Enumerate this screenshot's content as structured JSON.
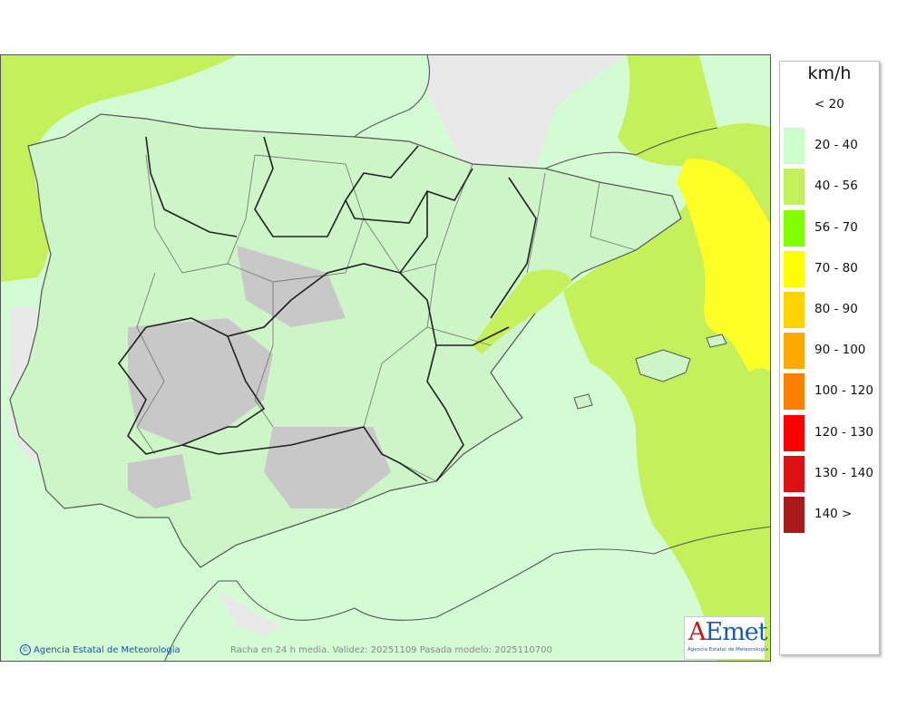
{
  "colors": {
    "sea_base": "#d4fcd4",
    "land_light": "#cdf5c8",
    "calm": "#e8e8e8",
    "band_40_56": "#c4f05a",
    "band_70_80": "#ffff26",
    "borders": "#222222",
    "regional_borders": "#7a7a7a"
  },
  "legend": {
    "unit": "km/h",
    "bands": [
      {
        "label": "< 20",
        "color": "#ffffff"
      },
      {
        "label": "20 - 40",
        "color": "#ccffcc"
      },
      {
        "label": "40 - 56",
        "color": "#c4f05a"
      },
      {
        "label": "56 - 70",
        "color": "#80ff00"
      },
      {
        "label": "70 - 80",
        "color": "#ffff00"
      },
      {
        "label": "80 - 90",
        "color": "#ffd400"
      },
      {
        "label": "90 - 100",
        "color": "#ffaa00"
      },
      {
        "label": "100 - 120",
        "color": "#ff8000"
      },
      {
        "label": "120 - 130",
        "color": "#ff0000"
      },
      {
        "label": "130 - 140",
        "color": "#dd1111"
      },
      {
        "label": "140 >",
        "color": "#aa1a1a"
      }
    ]
  },
  "footer": {
    "credit": "Agencia Estatal de Meteorología",
    "caption": "Racha en 24 h media. Validez: 20251109 Pasada modelo: 2025110700"
  },
  "logo": {
    "initial": "A",
    "rest": "Emet",
    "subtitle": "Agencia Estatal de Meteorología"
  }
}
